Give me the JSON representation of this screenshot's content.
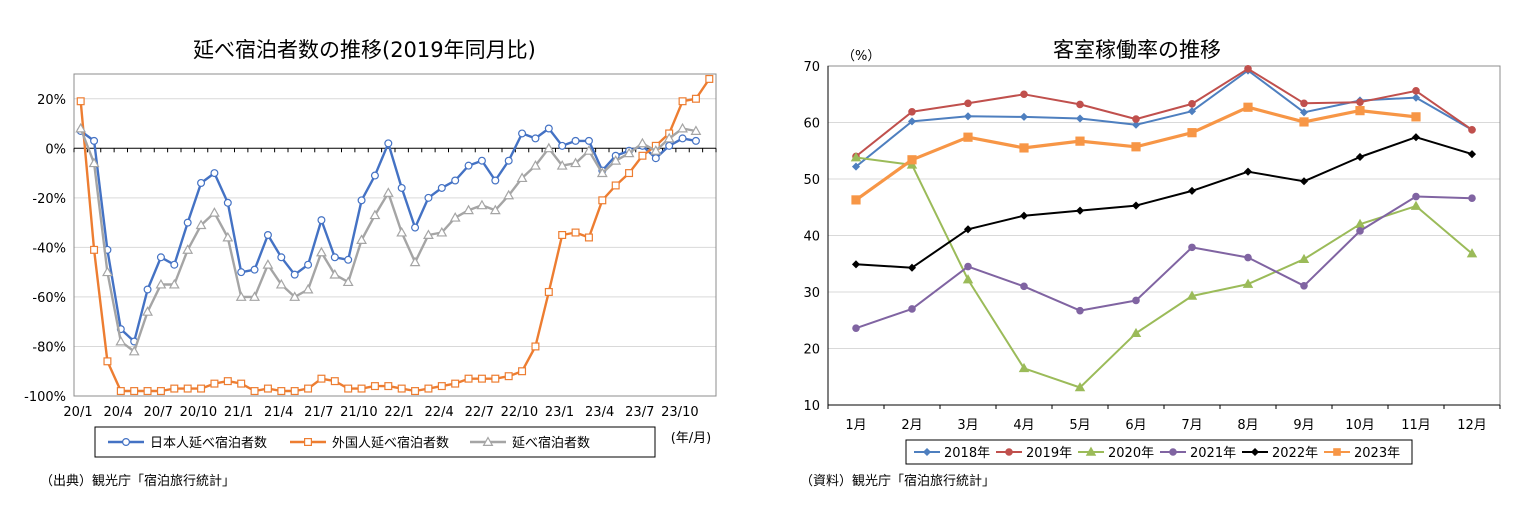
{
  "left_chart": {
    "title": "延べ宿泊者数の推移(2019年同月比)",
    "source": "（出典）観光庁「宿泊旅行統計」",
    "unit_label": "(年/月)",
    "chart_data": {
      "type": "line",
      "title": "延べ宿泊者数の推移(2019年同月比)",
      "ylim": [
        -100,
        30
      ],
      "y_ticks": [
        20,
        0,
        -20,
        -40,
        -60,
        -80,
        -100
      ],
      "y_tick_labels": [
        "20%",
        "0%",
        "-20%",
        "-40%",
        "-60%",
        "-80%",
        "-100%"
      ],
      "x_tick_labels": [
        "20/1",
        "20/4",
        "20/7",
        "20/10",
        "21/1",
        "21/4",
        "21/7",
        "21/10",
        "22/1",
        "22/4",
        "22/7",
        "22/10",
        "23/1",
        "23/4",
        "23/7",
        "23/10"
      ],
      "grid": "horizontal",
      "legend_position": "bottom",
      "x": [
        "20/1",
        "20/2",
        "20/3",
        "20/4",
        "20/5",
        "20/6",
        "20/7",
        "20/8",
        "20/9",
        "20/10",
        "20/11",
        "20/12",
        "21/1",
        "21/2",
        "21/3",
        "21/4",
        "21/5",
        "21/6",
        "21/7",
        "21/8",
        "21/9",
        "21/10",
        "21/11",
        "21/12",
        "22/1",
        "22/2",
        "22/3",
        "22/4",
        "22/5",
        "22/6",
        "22/7",
        "22/8",
        "22/9",
        "22/10",
        "22/11",
        "22/12",
        "23/1",
        "23/2",
        "23/3",
        "23/4",
        "23/5",
        "23/6",
        "23/7",
        "23/8",
        "23/9",
        "23/10",
        "23/11",
        "23/12"
      ],
      "series": [
        {
          "name": "日本人延べ宿泊者数",
          "color": "#4472c4",
          "marker": "circle",
          "values": [
            7,
            3,
            -41,
            -73,
            -78,
            -57,
            -44,
            -47,
            -30,
            -14,
            -10,
            -22,
            -50,
            -49,
            -35,
            -44,
            -51,
            -47,
            -29,
            -44,
            -45,
            -21,
            -11,
            2,
            -16,
            -32,
            -20,
            -16,
            -13,
            -7,
            -5,
            -13,
            -5,
            6,
            4,
            8,
            1,
            3,
            3,
            -9,
            -3,
            -1,
            1,
            -4,
            1,
            4,
            3,
            null
          ]
        },
        {
          "name": "外国人延べ宿泊者数",
          "color": "#ed7d31",
          "marker": "square",
          "values": [
            19,
            -41,
            -86,
            -98,
            -98,
            -98,
            -98,
            -97,
            -97,
            -97,
            -95,
            -94,
            -95,
            -98,
            -97,
            -98,
            -98,
            -97,
            -93,
            -94,
            -97,
            -97,
            -96,
            -96,
            -97,
            -98,
            -97,
            -96,
            -95,
            -93,
            -93,
            -93,
            -92,
            -90,
            -80,
            -58,
            -35,
            -34,
            -36,
            -21,
            -15,
            -10,
            -3,
            1,
            6,
            19,
            20,
            28
          ]
        },
        {
          "name": "延べ宿泊者数",
          "color": "#a5a5a5",
          "marker": "triangle",
          "values": [
            8,
            -6,
            -50,
            -78,
            -82,
            -66,
            -55,
            -55,
            -41,
            -31,
            -26,
            -36,
            -60,
            -60,
            -47,
            -55,
            -60,
            -57,
            -42,
            -51,
            -54,
            -37,
            -27,
            -18,
            -34,
            -46,
            -35,
            -34,
            -28,
            -25,
            -23,
            -25,
            -19,
            -12,
            -7,
            0,
            -7,
            -6,
            -1,
            -10,
            -5,
            -2,
            2,
            -1,
            4,
            8,
            7,
            null
          ]
        }
      ]
    }
  },
  "right_chart": {
    "title": "客室稼働率の推移",
    "source": "（資料）観光庁「宿泊旅行統計」",
    "y_unit": "（%）",
    "chart_data": {
      "type": "line",
      "title": "客室稼働率の推移",
      "ylabel": "（%）",
      "ylim": [
        10,
        70
      ],
      "y_ticks": [
        70,
        60,
        50,
        40,
        30,
        20,
        10
      ],
      "categories": [
        "1月",
        "2月",
        "3月",
        "4月",
        "5月",
        "6月",
        "7月",
        "8月",
        "9月",
        "10月",
        "11月",
        "12月"
      ],
      "grid": "horizontal",
      "legend_position": "bottom",
      "series": [
        {
          "name": "2018年",
          "color": "#4e7fbf",
          "marker": "diamond",
          "values": [
            52.2,
            60.2,
            61.1,
            61.0,
            60.7,
            59.6,
            62.0,
            69.2,
            61.8,
            63.9,
            64.4,
            58.7
          ]
        },
        {
          "name": "2019年",
          "color": "#c0504d",
          "marker": "circle",
          "values": [
            54.0,
            61.9,
            63.4,
            65.0,
            63.2,
            60.6,
            63.3,
            69.5,
            63.4,
            63.6,
            65.6,
            58.7
          ]
        },
        {
          "name": "2020年",
          "color": "#9bbb59",
          "marker": "triangle",
          "values": [
            53.8,
            52.5,
            32.2,
            16.5,
            13.1,
            22.7,
            29.3,
            31.4,
            35.8,
            42.0,
            45.2,
            36.8
          ]
        },
        {
          "name": "2021年",
          "color": "#8064a2",
          "marker": "circle",
          "values": [
            23.6,
            27.0,
            34.5,
            31.0,
            26.7,
            28.5,
            37.9,
            36.1,
            31.1,
            40.8,
            46.9,
            46.6
          ]
        },
        {
          "name": "2022年",
          "color": "#000000",
          "marker": "diamond",
          "values": [
            34.9,
            34.3,
            41.1,
            43.5,
            44.4,
            45.3,
            47.9,
            51.3,
            49.6,
            53.9,
            57.4,
            54.4
          ]
        },
        {
          "name": "2023年",
          "color": "#f79646",
          "marker": "square",
          "values": [
            46.3,
            53.4,
            57.4,
            55.5,
            56.7,
            55.7,
            58.2,
            62.7,
            60.1,
            62.1,
            61.0,
            null
          ]
        }
      ]
    }
  }
}
